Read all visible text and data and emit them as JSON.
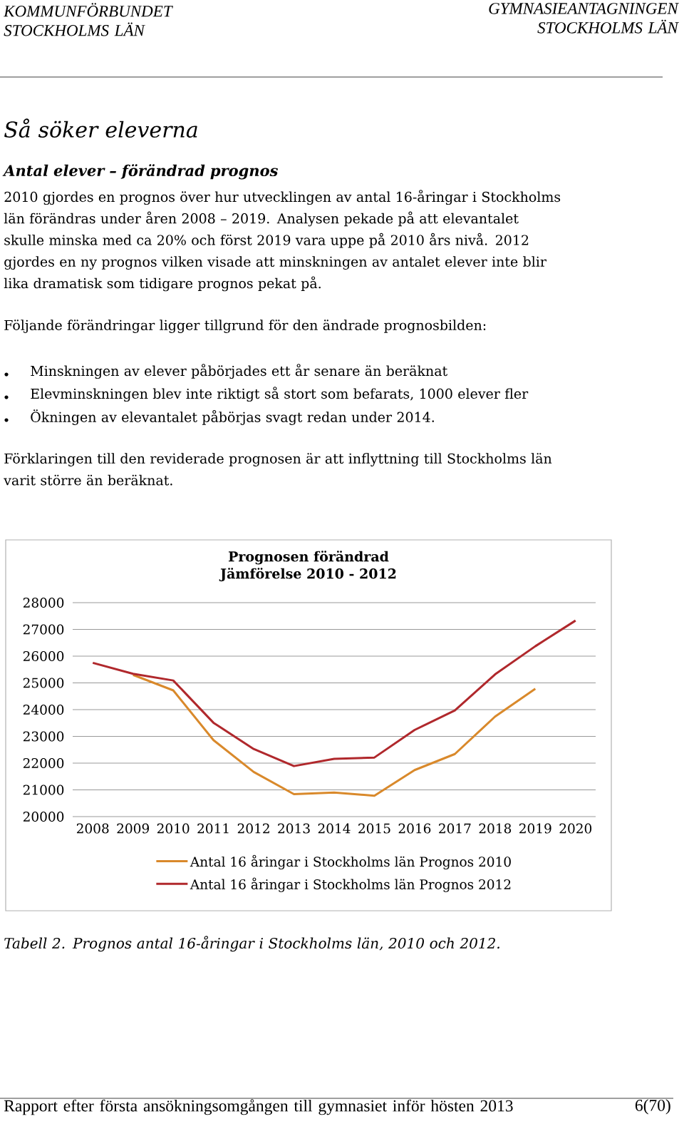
{
  "chart_data": {
    "type": "line",
    "title": "Prognosen förändrad",
    "subtitle": "Jämförelse 2010 - 2012",
    "categories": [
      "2008",
      "2009",
      "2010",
      "2011",
      "2012",
      "2013",
      "2014",
      "2015",
      "2016",
      "2017",
      "2018",
      "2019",
      "2020"
    ],
    "series": [
      {
        "name": "Antal 16 åringar i Stockholms län  Prognos 2010",
        "color": "#d9892b",
        "values": [
          null,
          25300,
          24720,
          22860,
          21670,
          20840,
          20900,
          20780,
          21740,
          22340,
          23740,
          24780,
          null
        ]
      },
      {
        "name": "Antal 16 åringar i Stockholms län  Prognos 2012",
        "color": "#b0282c",
        "values": [
          25750,
          25340,
          25090,
          23510,
          22530,
          21890,
          22160,
          22210,
          23240,
          23970,
          25320,
          26370,
          27330
        ]
      }
    ],
    "ylim": [
      20000,
      28000
    ],
    "yticks": [
      20000,
      21000,
      22000,
      23000,
      24000,
      25000,
      26000,
      27000,
      28000
    ],
    "grid": "y",
    "legend": "bottom",
    "marker": "none",
    "line_style": "solid",
    "annotations": [
      "KOMMUNFÖRBUNDET STOCKHOLMS LÄN",
      "GYMNASIEANTAGNINGEN STOCKHOLMS LÄN",
      "Så söker eleverna",
      "Antal elever – förändrad prognos",
      "2010 gjordes en prognos över hur utvecklingen av antal 16-åringar i Stockholms län förändras under åren 2008 – 2019. Analysen pekade på att elevantalet skulle minska med ca 20% och först 2019 vara uppe på 2010 års nivå. 2012 gjordes en ny prognos vilken visade att minskningen av antalet elever inte blir lika dramatisk som tidigare prognos pekat på.",
      "Följande förändringar ligger tillgrund för den ändrade prognosbilden:",
      "Minskningen av elever påbörjades ett år senare än beräknat",
      "Elevminskningen blev inte riktigt så stort som befarats, 1000 elever fler",
      "Ökningen av elevantalet påbörjas svagt redan under 2014.",
      "Förklaringen till den reviderade prognosen är att inflyttning till Stockholms län varit större än beräknat.",
      "Tabell 2. Prognos antal 16-åringar i Stockholms län, 2010 och 2012.",
      "Rapport efter första ansökningsomgången till gymnasiet inför hösten 2013",
      "6(70)"
    ]
  }
}
